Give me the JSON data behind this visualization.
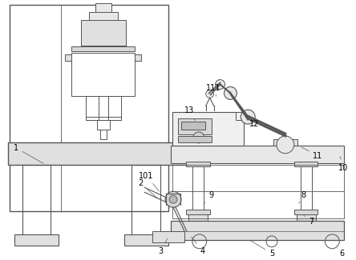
{
  "bg_color": "#ffffff",
  "lc": "#555555",
  "lw": 0.7,
  "fs": 7
}
